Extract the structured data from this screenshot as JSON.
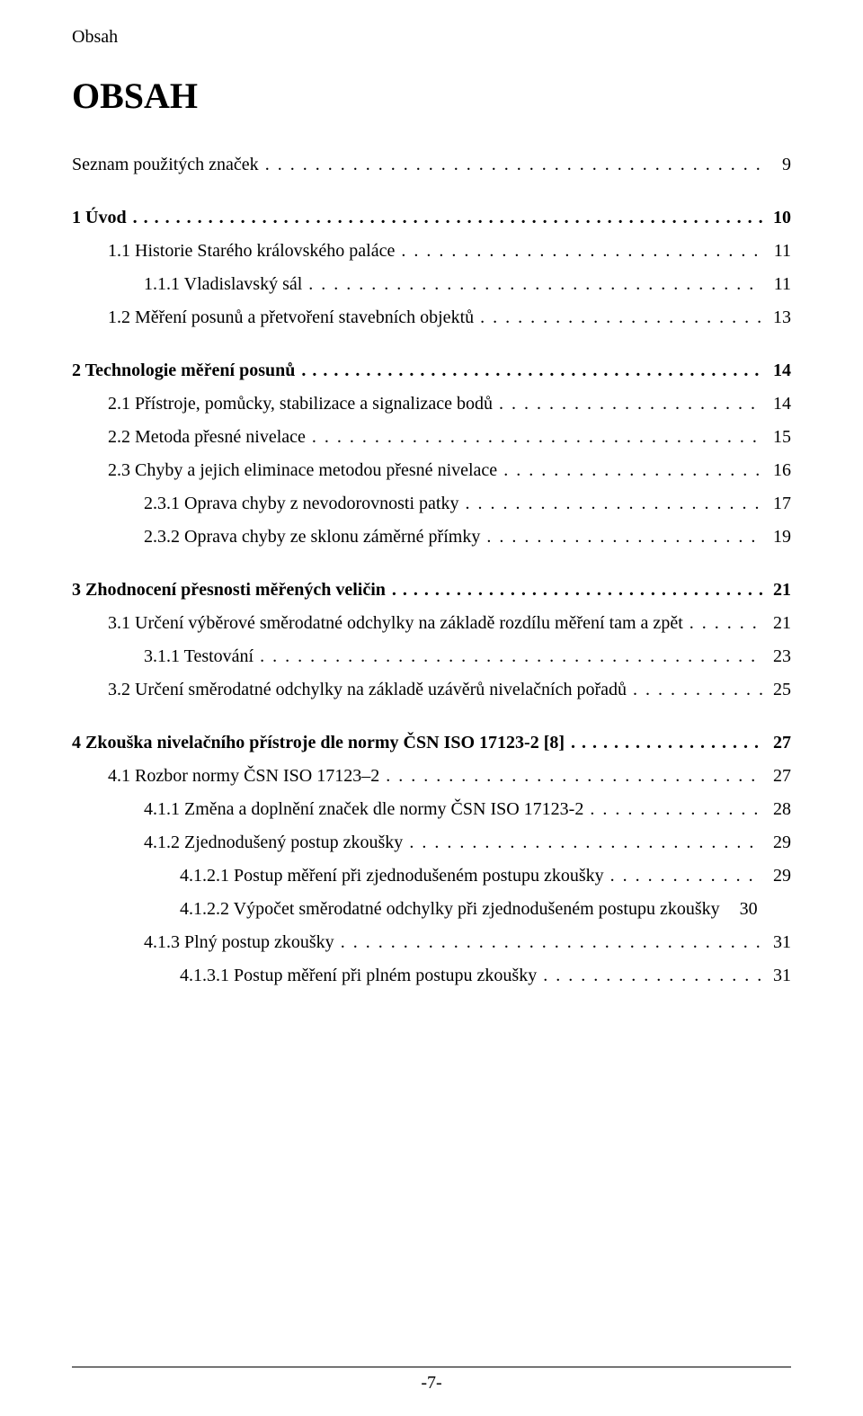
{
  "document": {
    "running_header": "Obsah",
    "title": "OBSAH",
    "page_footer": "-7-",
    "colors": {
      "text": "#000000",
      "background": "#ffffff"
    },
    "typography": {
      "body_fontsize_pt": 15,
      "title_fontsize_pt": 30,
      "font_family": "Times New Roman"
    }
  },
  "toc": [
    {
      "level": 0,
      "bold": false,
      "label": "Seznam použitých značek",
      "page": "9",
      "leader": "dot",
      "gap_after": true
    },
    {
      "level": 0,
      "bold": true,
      "label": "1 Úvod",
      "page": "10",
      "leader": "bolddot",
      "gap_after": false
    },
    {
      "level": 1,
      "bold": false,
      "label": "1.1 Historie Starého královského paláce",
      "page": "11",
      "leader": "dot",
      "gap_after": false
    },
    {
      "level": 2,
      "bold": false,
      "label": "1.1.1 Vladislavský sál",
      "page": "11",
      "leader": "dot",
      "gap_after": false
    },
    {
      "level": 1,
      "bold": false,
      "label": "1.2 Měření posunů a přetvoření stavebních objektů",
      "page": "13",
      "leader": "dot",
      "gap_after": true
    },
    {
      "level": 0,
      "bold": true,
      "label": "2 Technologie měření posunů",
      "page": "14",
      "leader": "bolddot",
      "gap_after": false
    },
    {
      "level": 1,
      "bold": false,
      "label": "2.1 Přístroje, pomůcky, stabilizace a signalizace bodů",
      "page": "14",
      "leader": "dot",
      "gap_after": false
    },
    {
      "level": 1,
      "bold": false,
      "label": "2.2 Metoda přesné nivelace",
      "page": "15",
      "leader": "dot",
      "gap_after": false
    },
    {
      "level": 1,
      "bold": false,
      "label": "2.3 Chyby a jejich eliminace metodou přesné nivelace",
      "page": "16",
      "leader": "dot",
      "gap_after": false
    },
    {
      "level": 2,
      "bold": false,
      "label": "2.3.1 Oprava chyby z nevodorovnosti patky",
      "page": "17",
      "leader": "dot",
      "gap_after": false
    },
    {
      "level": 2,
      "bold": false,
      "label": "2.3.2 Oprava chyby ze sklonu záměrné přímky",
      "page": "19",
      "leader": "dot",
      "gap_after": true
    },
    {
      "level": 0,
      "bold": true,
      "label": "3 Zhodnocení přesnosti měřených veličin",
      "page": "21",
      "leader": "bolddot",
      "gap_after": false
    },
    {
      "level": 1,
      "bold": false,
      "label": "3.1 Určení výběrové směrodatné odchylky na základě rozdílu měření tam a zpět",
      "page": "21",
      "leader": "dot",
      "gap_after": false
    },
    {
      "level": 2,
      "bold": false,
      "label": "3.1.1 Testování",
      "page": "23",
      "leader": "dot",
      "gap_after": false
    },
    {
      "level": 1,
      "bold": false,
      "label": "3.2 Určení směrodatné odchylky na základě uzávěrů nivelačních pořadů",
      "page": "25",
      "leader": "dot",
      "gap_after": true
    },
    {
      "level": 0,
      "bold": true,
      "label": "4 Zkouška nivelačního přístroje dle normy ČSN ISO 17123-2 [8]",
      "page": "27",
      "leader": "bolddot",
      "gap_after": false
    },
    {
      "level": 1,
      "bold": false,
      "label": "4.1 Rozbor normy ČSN ISO 17123–2",
      "page": "27",
      "leader": "dot",
      "gap_after": false
    },
    {
      "level": 2,
      "bold": false,
      "label": "4.1.1 Změna a doplnění značek dle normy ČSN ISO 17123-2",
      "page": "28",
      "leader": "dot",
      "gap_after": false
    },
    {
      "level": 2,
      "bold": false,
      "label": "4.1.2  Zjednodušený postup zkoušky",
      "page": "29",
      "leader": "dot",
      "gap_after": false
    },
    {
      "level": 3,
      "bold": false,
      "label": "4.1.2.1 Postup měření při zjednodušeném postupu zkoušky",
      "page": "29",
      "leader": "dot",
      "gap_after": false
    },
    {
      "level": 3,
      "bold": false,
      "label": "4.1.2.2 Výpočet směrodatné odchylky při zjednodušeném postupu zkoušky",
      "page": "30",
      "leader": "none",
      "gap_after": false,
      "line_break_before_page": true
    },
    {
      "level": 2,
      "bold": false,
      "label": "4.1.3 Plný postup zkoušky",
      "page": "31",
      "leader": "dot",
      "gap_after": false
    },
    {
      "level": 3,
      "bold": false,
      "label": "4.1.3.1 Postup měření při plném postupu zkoušky",
      "page": "31",
      "leader": "dot",
      "gap_after": false
    }
  ]
}
